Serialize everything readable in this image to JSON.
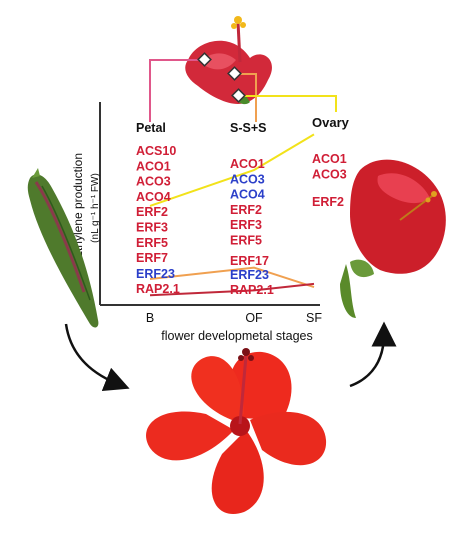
{
  "chart_data": {
    "type": "line",
    "xlabel": "flower developmetal stages",
    "ylabel": "Ethylene production",
    "ylabel_unit": "(nL g⁻¹ h⁻¹ FW)",
    "categories": [
      "B",
      "OF",
      "SF"
    ],
    "series": [
      {
        "color": "#f2e21a",
        "values": [
          6.1,
          8.3,
          10.5
        ]
      },
      {
        "color": "#f0a050",
        "values": [
          1.6,
          2.3,
          1.1
        ]
      },
      {
        "color": "#c0283a",
        "values": [
          0.6,
          0.9,
          1.3
        ]
      }
    ]
  },
  "columns": {
    "petal": {
      "header": "Petal",
      "genes": [
        {
          "name": "ACS10",
          "color": "red"
        },
        {
          "name": "ACO1",
          "color": "red"
        },
        {
          "name": "ACO3",
          "color": "red"
        },
        {
          "name": "ACO4",
          "color": "red"
        },
        {
          "name": "ERF2",
          "color": "red"
        },
        {
          "name": "ERF3",
          "color": "red"
        },
        {
          "name": "ERF5",
          "color": "red"
        },
        {
          "name": "ERF7",
          "color": "red"
        },
        {
          "name": "ERF23",
          "color": "blue"
        },
        {
          "name": "RAP2.1",
          "color": "red"
        }
      ]
    },
    "ssplus": {
      "header": "S-S+S",
      "genes": [
        {
          "name": "ACO1",
          "color": "red"
        },
        {
          "name": "ACO3",
          "color": "blue"
        },
        {
          "name": "ACO4",
          "color": "blue"
        },
        {
          "name": "ERF2",
          "color": "red"
        },
        {
          "name": "ERF3",
          "color": "red"
        },
        {
          "name": "ERF5",
          "color": "red"
        },
        {
          "name": "ERF17",
          "color": "red"
        },
        {
          "name": "ERF23",
          "color": "blue"
        },
        {
          "name": "RAP2.1",
          "color": "red"
        }
      ]
    },
    "ovary": {
      "header": "Ovary",
      "genes": [
        {
          "name": "ACO1",
          "color": "red"
        },
        {
          "name": "ACO3",
          "color": "red"
        },
        {
          "name": "ERF2",
          "color": "red"
        }
      ]
    }
  },
  "colors": {
    "connector_petal": "#e0578a",
    "connector_ssplus": "#f0a050",
    "connector_ovary": "#f2e21a",
    "gene_up": "#d01e36",
    "gene_down": "#2b3fc9"
  },
  "images": [
    "hibiscus-bud-icon",
    "hibiscus-open-flower-icon",
    "hibiscus-senescent-flower-icon",
    "hibiscus-top-flower-icon"
  ]
}
